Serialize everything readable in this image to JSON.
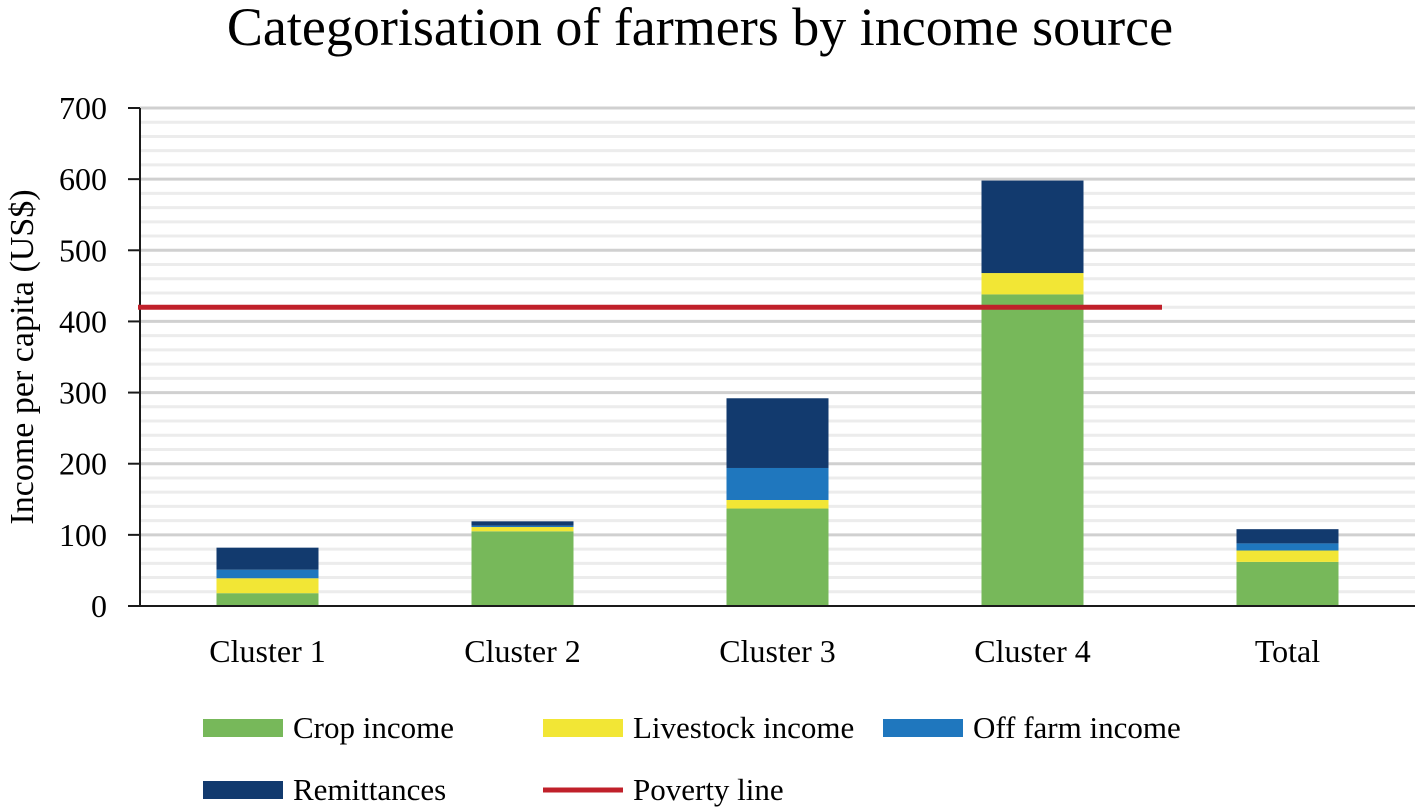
{
  "chart_data": {
    "type": "bar",
    "stacked": true,
    "title": "Categorisation of farmers by income source",
    "ylabel": "Income per capita (US$)",
    "xlabel": "",
    "ylim": [
      0,
      700
    ],
    "yticks": [
      0,
      100,
      200,
      300,
      400,
      500,
      600,
      700
    ],
    "grid": true,
    "legend_position": "bottom",
    "categories": [
      "Cluster 1",
      "Cluster 2",
      "Cluster 3",
      "Cluster 4",
      "Total"
    ],
    "series": [
      {
        "name": "Crop income",
        "color": "#77b85a",
        "values": [
          18,
          105,
          137,
          438,
          62
        ]
      },
      {
        "name": "Livestock income",
        "color": "#f2e635",
        "values": [
          21,
          6,
          12,
          30,
          16
        ]
      },
      {
        "name": "Off farm income",
        "color": "#1f77be",
        "values": [
          12,
          2,
          45,
          0,
          10
        ]
      },
      {
        "name": "Remittances",
        "color": "#123a6e",
        "values": [
          31,
          6,
          98,
          130,
          20
        ]
      }
    ],
    "reference_line": {
      "name": "Poverty line",
      "value": 420,
      "color": "#c0202a"
    }
  }
}
